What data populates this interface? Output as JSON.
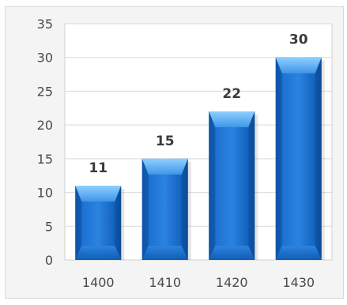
{
  "chart_data": {
    "type": "bar",
    "title": "",
    "xlabel": "",
    "ylabel": "",
    "categories": [
      "1400",
      "1410",
      "1420",
      "1430"
    ],
    "values": [
      11,
      15,
      22,
      30
    ],
    "data_labels": [
      "11",
      "15",
      "22",
      "30"
    ],
    "ylim": [
      0,
      35
    ],
    "yticks": [
      0,
      5,
      10,
      15,
      20,
      25,
      30,
      35
    ],
    "grid": true,
    "legend": "none",
    "colors": {
      "bar": "#1f73d1",
      "bar_dark": "#0e56a8",
      "bar_light": "#55a8f2",
      "plot_background": "#ffffff",
      "panel_background": "#f4f4f4",
      "grid": "#d9d9d9"
    }
  }
}
